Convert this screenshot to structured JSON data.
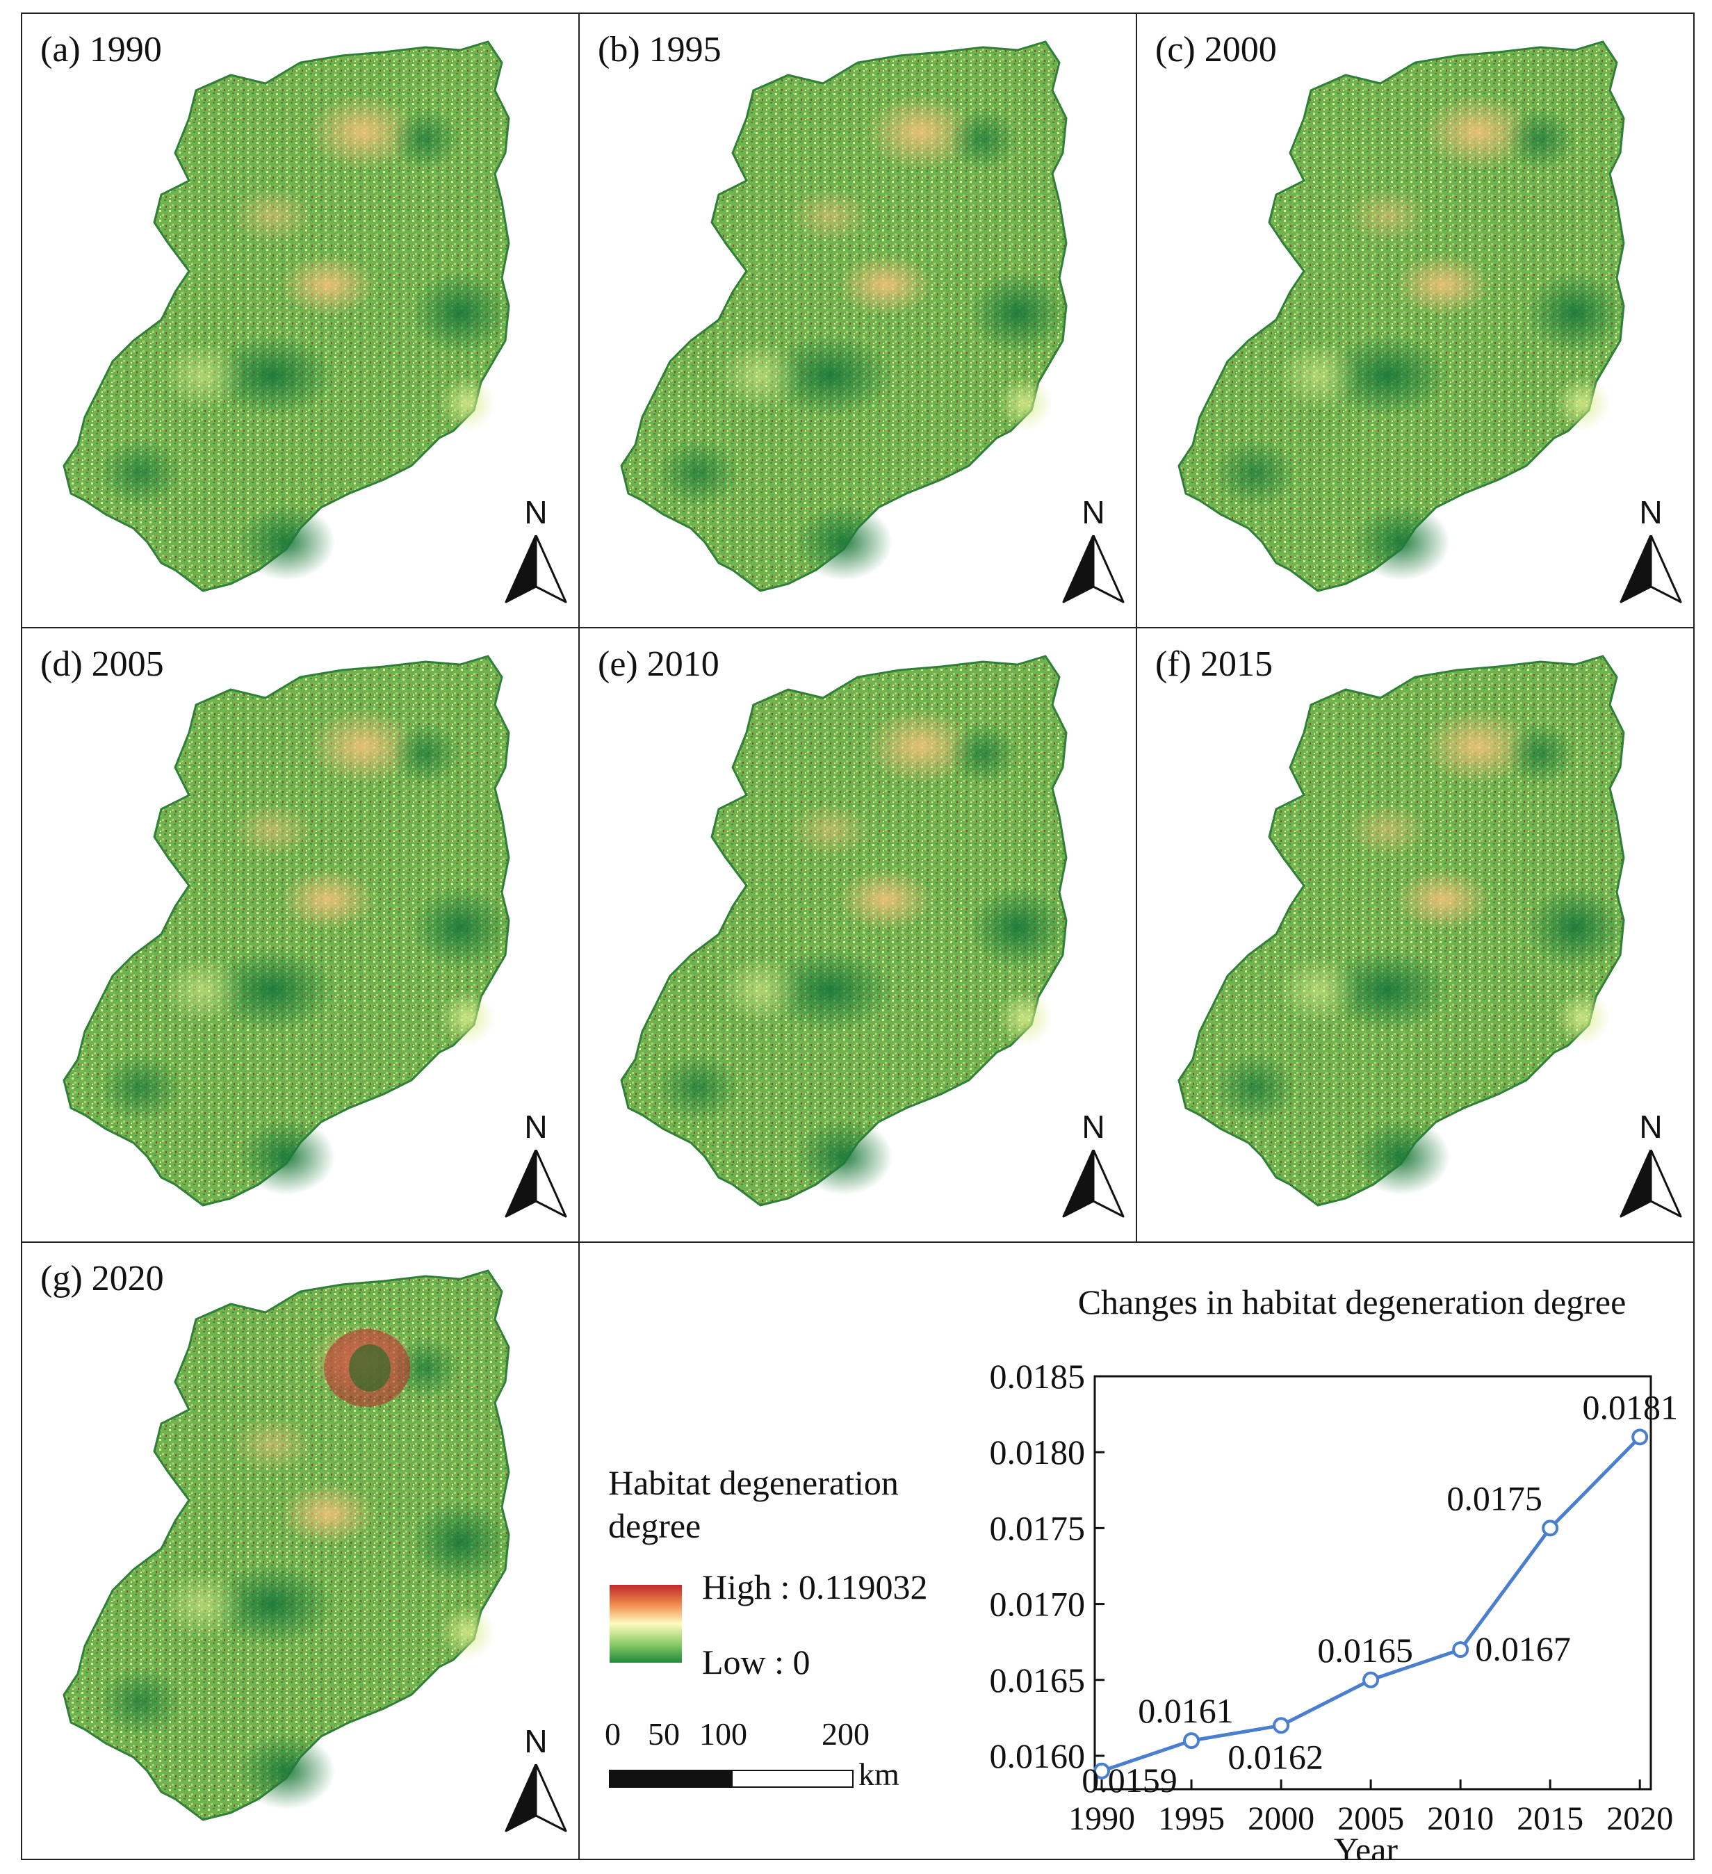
{
  "panels": [
    {
      "label": "(a) 1990"
    },
    {
      "label": "(b) 1995"
    },
    {
      "label": "(c) 2000"
    },
    {
      "label": "(d) 2005"
    },
    {
      "label": "(e) 2010"
    },
    {
      "label": "(f) 2015"
    },
    {
      "label": "(g) 2020"
    }
  ],
  "north_arrow": {
    "letter": "N"
  },
  "legend": {
    "title": "Habitat degeneration degree",
    "high": "High : 0.119032",
    "low": "Low : 0",
    "colors": {
      "high": "#c0262c",
      "mid": "#fffbc0",
      "low": "#1e8a3a"
    }
  },
  "scale_bar": {
    "labels": [
      "0",
      "50",
      "100",
      "200"
    ],
    "unit": "km"
  },
  "chart_data": {
    "type": "line",
    "title": "Changes in habitat degeneration degree",
    "xlabel": "Year",
    "ylabel": "",
    "x": [
      1990,
      1995,
      2000,
      2005,
      2010,
      2015,
      2020
    ],
    "series": [
      {
        "values": [
          0.0159,
          0.0161,
          0.0162,
          0.0165,
          0.0167,
          0.0175,
          0.0181
        ],
        "color": "#4a7fd0"
      }
    ],
    "data_labels": [
      "0.0159",
      "0.0161",
      "0.0162",
      "0.0165",
      "0.0167",
      "0.0175",
      "0.0181"
    ],
    "yticks": [
      "0.0160",
      "0.0165",
      "0.0170",
      "0.0175",
      "0.0180",
      "0.0185"
    ],
    "xticks": [
      "1990",
      "1995",
      "2000",
      "2005",
      "2010",
      "2015",
      "2020"
    ],
    "ylim": [
      0.01578,
      0.0185
    ],
    "grid": false
  }
}
